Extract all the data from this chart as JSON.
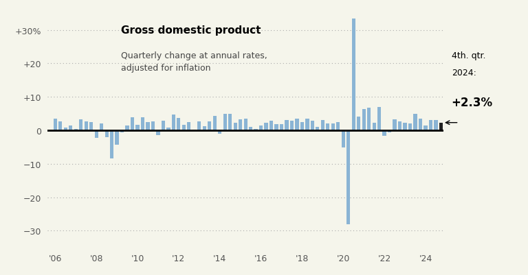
{
  "title": "Gross domestic product",
  "subtitle": "Quarterly change at annual rates,\nadjusted for inflation",
  "annotation_line1": "4th. qtr.",
  "annotation_line2": "2024:",
  "annotation_value": "+2.3%",
  "bar_color": "#8ab4d4",
  "last_bar_color": "#222222",
  "ylim": [
    -35,
    35
  ],
  "yticks": [
    -30,
    -20,
    -10,
    0,
    10,
    20,
    30
  ],
  "ytick_labels": [
    "−30",
    "−20",
    "−10",
    "0",
    "+10",
    "+20",
    "+30%"
  ],
  "background_color": "#f5f5eb",
  "gdp_values": [
    3.4,
    2.7,
    0.8,
    1.5,
    0.4,
    3.2,
    2.7,
    2.5,
    -2.3,
    2.1,
    -2.1,
    -8.4,
    -4.4,
    -0.6,
    1.5,
    3.9,
    1.7,
    3.9,
    2.5,
    2.6,
    -1.5,
    2.9,
    0.8,
    4.7,
    3.7,
    1.6,
    2.4,
    0.1,
    2.7,
    1.2,
    2.6,
    4.3,
    -1.1,
    5.0,
    4.9,
    2.3,
    3.2,
    3.5,
    1.0,
    0.4,
    1.5,
    2.3,
    2.8,
    1.8,
    1.8,
    3.0,
    2.8,
    3.5,
    2.5,
    3.5,
    2.9,
    1.1,
    3.1,
    2.1,
    2.1,
    2.4,
    -5.1,
    -28.0,
    33.4,
    4.0,
    6.3,
    6.7,
    2.3,
    7.0,
    -1.6,
    -0.6,
    3.2,
    2.6,
    2.2,
    2.1,
    4.9,
    3.4,
    1.4,
    3.0,
    3.1,
    2.3
  ],
  "year_start": 2006
}
